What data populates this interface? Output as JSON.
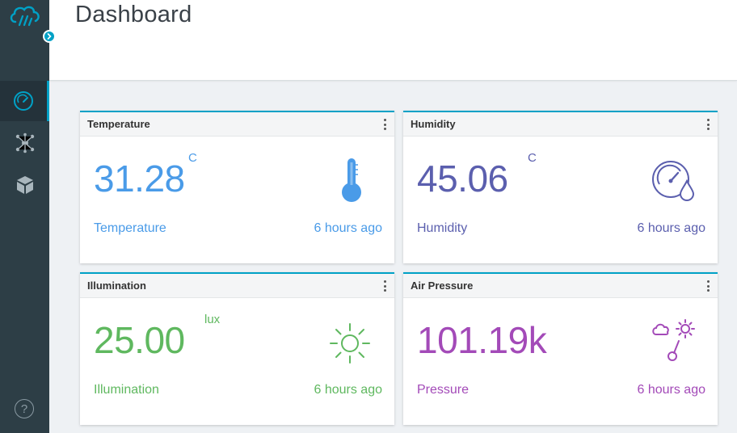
{
  "header": {
    "title": "Dashboard"
  },
  "colors": {
    "accent": "#00a1c6",
    "temperature": "#4a9be8",
    "humidity": "#5b5fae",
    "illumination": "#5fb85f",
    "pressure": "#a34ab8"
  },
  "sidebar": {
    "items": [
      {
        "icon": "dashboard-gauge-icon",
        "active": true
      },
      {
        "icon": "network-hub-icon",
        "active": false
      },
      {
        "icon": "cube-icon",
        "active": false
      }
    ],
    "help_label": "?"
  },
  "cards": [
    {
      "title": "Temperature",
      "value": "31.28",
      "unit": "C",
      "label": "Temperature",
      "time": "6 hours ago",
      "icon": "thermometer-icon"
    },
    {
      "title": "Humidity",
      "value": "45.06",
      "unit": "C",
      "label": "Humidity",
      "time": "6 hours ago",
      "icon": "humidity-gauge-icon"
    },
    {
      "title": "Illumination",
      "value": "25.00",
      "unit": "lux",
      "label": "Illumination",
      "time": "6 hours ago",
      "icon": "sun-icon"
    },
    {
      "title": "Air Pressure",
      "value": "101.19k",
      "unit": "",
      "label": "Pressure",
      "time": "6 hours ago",
      "icon": "weather-pressure-icon"
    }
  ]
}
